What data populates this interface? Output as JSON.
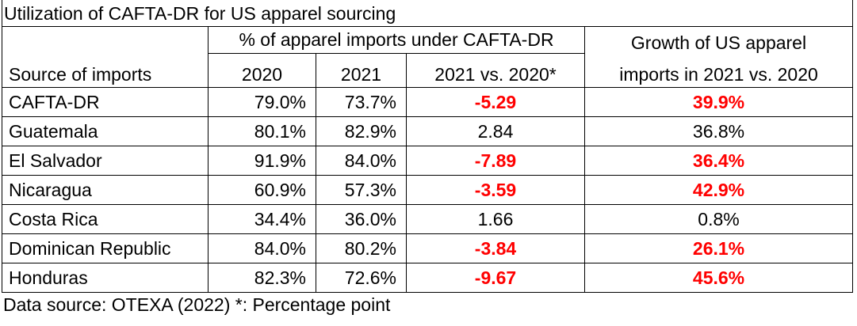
{
  "title": "Utilization of CAFTA-DR for US apparel sourcing",
  "header": {
    "group_label": "% of apparel imports under CAFTA-DR",
    "source_label": "Source of imports",
    "col_2020": "2020",
    "col_2021": "2021",
    "col_change": "2021 vs. 2020*",
    "growth_line1": "Growth of US apparel",
    "growth_line2": "imports in 2021 vs. 2020"
  },
  "rows": [
    {
      "source": "CAFTA-DR",
      "y2020": "79.0%",
      "y2021": "73.7%",
      "change": "-5.29",
      "growth": "39.9%",
      "highlight": true
    },
    {
      "source": "Guatemala",
      "y2020": "80.1%",
      "y2021": "82.9%",
      "change": "2.84",
      "growth": "36.8%",
      "highlight": false
    },
    {
      "source": "El Salvador",
      "y2020": "91.9%",
      "y2021": "84.0%",
      "change": "-7.89",
      "growth": "36.4%",
      "highlight": true
    },
    {
      "source": "Nicaragua",
      "y2020": "60.9%",
      "y2021": "57.3%",
      "change": "-3.59",
      "growth": "42.9%",
      "highlight": true
    },
    {
      "source": "Costa Rica",
      "y2020": "34.4%",
      "y2021": "36.0%",
      "change": "1.66",
      "growth": "0.8%",
      "highlight": false
    },
    {
      "source": "Dominican Republic",
      "y2020": "84.0%",
      "y2021": "80.2%",
      "change": "-3.84",
      "growth": "26.1%",
      "highlight": true
    },
    {
      "source": "Honduras",
      "y2020": "82.3%",
      "y2021": "72.6%",
      "change": "-9.67",
      "growth": "45.6%",
      "highlight": true
    }
  ],
  "footer": "Data source: OTEXA (2022) *: Percentage point",
  "colors": {
    "highlight": "#ff0000"
  }
}
